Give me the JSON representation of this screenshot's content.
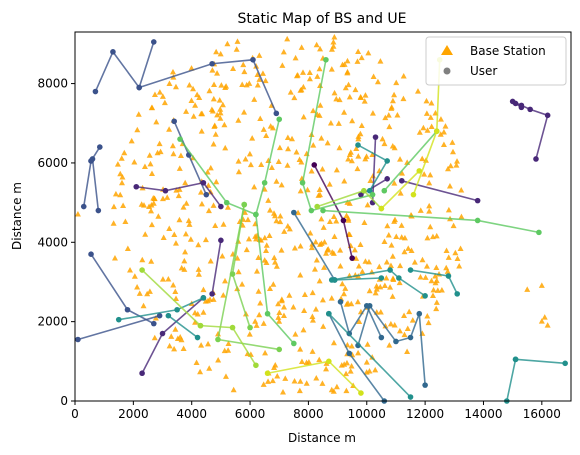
{
  "chart_data": {
    "type": "scatter",
    "title": "Static Map of BS and UE",
    "xlabel": "Distance m",
    "ylabel": "Distance m",
    "xlim": [
      0,
      17000
    ],
    "ylim": [
      0,
      9300
    ],
    "xticks": [
      0,
      2000,
      4000,
      6000,
      8000,
      10000,
      12000,
      14000,
      16000
    ],
    "yticks": [
      0,
      2000,
      4000,
      6000,
      8000
    ],
    "grid": false,
    "legend": {
      "placement": "top-right",
      "entries": [
        {
          "label": "Base Station",
          "marker": "triangle",
          "color": "#FFA500"
        },
        {
          "label": "User",
          "marker": "circle",
          "color": "#808080"
        }
      ]
    },
    "base_station_color": "#FFA500",
    "user_series": [
      {
        "color": "#3B528B",
        "points": [
          [
            300,
            4900
          ],
          [
            550,
            6050
          ],
          [
            600,
            6100
          ],
          [
            800,
            4800
          ]
        ]
      },
      {
        "color": "#3B528B",
        "points": [
          [
            700,
            7800
          ],
          [
            1300,
            8800
          ],
          [
            2200,
            7900
          ],
          [
            2700,
            9050
          ]
        ]
      },
      {
        "color": "#3B528B",
        "points": [
          [
            3400,
            7050
          ],
          [
            3900,
            6200
          ],
          [
            4500,
            5200
          ]
        ]
      },
      {
        "color": "#3B528B",
        "points": [
          [
            2200,
            7900
          ],
          [
            4700,
            8500
          ],
          [
            6100,
            8600
          ],
          [
            6900,
            7250
          ]
        ]
      },
      {
        "color": "#3B528B",
        "points": [
          [
            550,
            3700
          ],
          [
            1800,
            2300
          ],
          [
            2700,
            1950
          ]
        ]
      },
      {
        "color": "#3B528B",
        "points": [
          [
            100,
            1550
          ],
          [
            2900,
            2150
          ]
        ]
      },
      {
        "color": "#3B528B",
        "points": [
          [
            550,
            6050
          ],
          [
            850,
            6400
          ]
        ]
      },
      {
        "color": "#482878",
        "points": [
          [
            2100,
            5400
          ],
          [
            3100,
            5300
          ],
          [
            4400,
            5500
          ],
          [
            5000,
            4900
          ]
        ]
      },
      {
        "color": "#482878",
        "points": [
          [
            4700,
            2700
          ],
          [
            5000,
            4050
          ]
        ]
      },
      {
        "color": "#482878",
        "points": [
          [
            4400,
            2600
          ],
          [
            3000,
            1700
          ],
          [
            2300,
            700
          ]
        ]
      },
      {
        "color": "#440154",
        "points": [
          [
            8200,
            5950
          ],
          [
            9200,
            4550
          ],
          [
            9500,
            3600
          ]
        ]
      },
      {
        "color": "#482878",
        "points": [
          [
            10300,
            6650
          ],
          [
            10200,
            5000
          ]
        ]
      },
      {
        "color": "#482878",
        "points": [
          [
            10700,
            5600
          ],
          [
            9800,
            5200
          ]
        ]
      },
      {
        "color": "#482878",
        "points": [
          [
            11200,
            5550
          ],
          [
            13800,
            5050
          ]
        ]
      },
      {
        "color": "#482878",
        "points": [
          [
            15000,
            7550
          ],
          [
            15300,
            7450
          ],
          [
            15600,
            7350
          ],
          [
            16200,
            7200
          ],
          [
            15800,
            6100
          ]
        ]
      },
      {
        "color": "#482878",
        "points": [
          [
            15100,
            7500
          ],
          [
            15300,
            7400
          ]
        ]
      },
      {
        "color": "#31688E",
        "points": [
          [
            7500,
            4750
          ],
          [
            8900,
            3050
          ]
        ]
      },
      {
        "color": "#31688E",
        "points": [
          [
            8700,
            2200
          ],
          [
            9400,
            1200
          ],
          [
            10600,
            0
          ]
        ]
      },
      {
        "color": "#31688E",
        "points": [
          [
            9700,
            1400
          ],
          [
            10100,
            2400
          ],
          [
            11000,
            1500
          ],
          [
            11500,
            1600
          ],
          [
            11800,
            2200
          ],
          [
            12000,
            400
          ]
        ]
      },
      {
        "color": "#31688E",
        "points": [
          [
            9100,
            2500
          ],
          [
            9400,
            1700
          ],
          [
            10000,
            2400
          ],
          [
            10500,
            1600
          ]
        ]
      },
      {
        "color": "#21908C",
        "points": [
          [
            8800,
            3050
          ],
          [
            10800,
            3300
          ],
          [
            11100,
            3100
          ],
          [
            12000,
            2650
          ]
        ]
      },
      {
        "color": "#21908C",
        "points": [
          [
            8900,
            3050
          ],
          [
            10500,
            3100
          ]
        ]
      },
      {
        "color": "#21908C",
        "points": [
          [
            8700,
            2200
          ],
          [
            11500,
            100
          ]
        ]
      },
      {
        "color": "#21908C",
        "points": [
          [
            1500,
            2050
          ],
          [
            3500,
            2300
          ],
          [
            4400,
            2600
          ]
        ]
      },
      {
        "color": "#21908C",
        "points": [
          [
            3200,
            2150
          ],
          [
            4200,
            1600
          ]
        ]
      },
      {
        "color": "#21908C",
        "points": [
          [
            15100,
            1050
          ],
          [
            16800,
            950
          ]
        ]
      },
      {
        "color": "#21908C",
        "points": [
          [
            14800,
            0
          ],
          [
            15100,
            1050
          ]
        ]
      },
      {
        "color": "#21908C",
        "points": [
          [
            9700,
            6450
          ],
          [
            10700,
            6050
          ],
          [
            10100,
            5300
          ]
        ]
      },
      {
        "color": "#21908C",
        "points": [
          [
            11500,
            3300
          ],
          [
            12800,
            3150
          ],
          [
            13100,
            2700
          ]
        ]
      },
      {
        "color": "#5EC962",
        "points": [
          [
            8600,
            8600
          ],
          [
            7800,
            5500
          ],
          [
            8100,
            4800
          ],
          [
            10200,
            5200
          ]
        ]
      },
      {
        "color": "#5EC962",
        "points": [
          [
            10600,
            5300
          ],
          [
            12400,
            6800
          ]
        ]
      },
      {
        "color": "#5EC962",
        "points": [
          [
            8500,
            4800
          ],
          [
            13800,
            4550
          ],
          [
            15900,
            4250
          ]
        ]
      },
      {
        "color": "#5EC962",
        "points": [
          [
            6200,
            4700
          ],
          [
            6500,
            5500
          ],
          [
            7000,
            7100
          ]
        ]
      },
      {
        "color": "#5EC962",
        "points": [
          [
            3600,
            6600
          ],
          [
            5200,
            5000
          ],
          [
            6200,
            4700
          ],
          [
            6600,
            2200
          ],
          [
            7500,
            1450
          ]
        ]
      },
      {
        "color": "#7AD151",
        "points": [
          [
            5800,
            4950
          ],
          [
            4900,
            1550
          ],
          [
            7000,
            1300
          ]
        ]
      },
      {
        "color": "#7AD151",
        "points": [
          [
            6000,
            1850
          ],
          [
            5400,
            3200
          ],
          [
            5800,
            4950
          ]
        ]
      },
      {
        "color": "#A0DA39",
        "points": [
          [
            2300,
            3300
          ],
          [
            4300,
            1900
          ]
        ]
      },
      {
        "color": "#A0DA39",
        "points": [
          [
            4300,
            1900
          ],
          [
            5400,
            1850
          ],
          [
            6200,
            900
          ]
        ]
      },
      {
        "color": "#A0DA39",
        "points": [
          [
            8300,
            4900
          ],
          [
            9900,
            5300
          ],
          [
            10500,
            4850
          ]
        ]
      },
      {
        "color": "#D2E21B",
        "points": [
          [
            6600,
            700
          ],
          [
            8700,
            1000
          ],
          [
            9800,
            200
          ]
        ]
      },
      {
        "color": "#D2E21B",
        "points": [
          [
            10500,
            4850
          ],
          [
            11800,
            5800
          ]
        ]
      },
      {
        "color": "#D2E21B",
        "points": [
          [
            11600,
            5200
          ],
          [
            12400,
            6800
          ],
          [
            12500,
            8600
          ]
        ]
      }
    ]
  }
}
